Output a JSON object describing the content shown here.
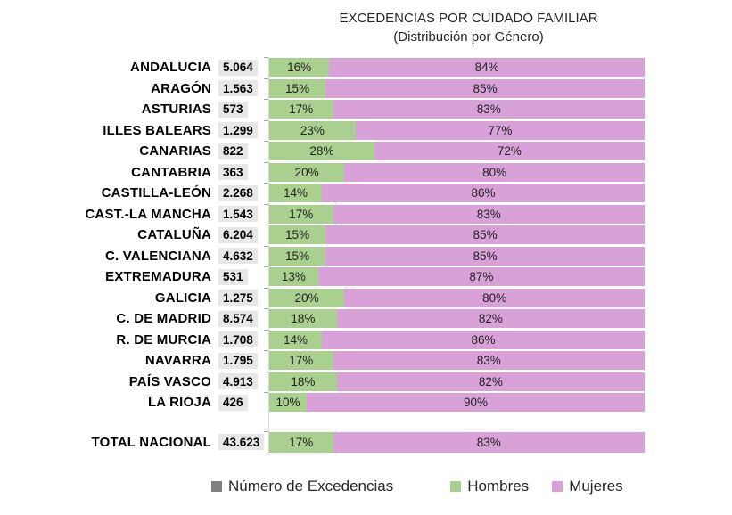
{
  "title": {
    "line1": "EXCEDENCIAS POR CUIDADO FAMILIAR",
    "line2": "(Distribución por Género)"
  },
  "colors": {
    "hombres": "#A9D08E",
    "mujeres": "#D8A2D8",
    "numero": "#808080",
    "value_background": "#E8E7E7",
    "axis": "#D9D9D9"
  },
  "chart_data": {
    "type": "bar",
    "subtype": "horizontal-stacked-100pct",
    "title": "EXCEDENCIAS POR CUIDADO FAMILIAR (Distribución por Género)",
    "series": [
      {
        "name": "Número de Excedencias",
        "color": "#808080"
      },
      {
        "name": "Hombres",
        "color": "#A9D08E"
      },
      {
        "name": "Mujeres",
        "color": "#D8A2D8"
      }
    ],
    "rows": [
      {
        "region": "ANDALUCIA",
        "excedencias": "5.064",
        "hombres": "16%",
        "mujeres": "84%"
      },
      {
        "region": "ARAGÓN",
        "excedencias": "1.563",
        "hombres": "15%",
        "mujeres": "85%"
      },
      {
        "region": "ASTURIAS",
        "excedencias": "573",
        "hombres": "17%",
        "mujeres": "83%"
      },
      {
        "region": "ILLES BALEARS",
        "excedencias": "1.299",
        "hombres": "23%",
        "mujeres": "77%"
      },
      {
        "region": "CANARIAS",
        "excedencias": "822",
        "hombres": "28%",
        "mujeres": "72%"
      },
      {
        "region": "CANTABRIA",
        "excedencias": "363",
        "hombres": "20%",
        "mujeres": "80%"
      },
      {
        "region": "CASTILLA-LEÓN",
        "excedencias": "2.268",
        "hombres": "14%",
        "mujeres": "86%"
      },
      {
        "region": "CAST.-LA MANCHA",
        "excedencias": "1.543",
        "hombres": "17%",
        "mujeres": "83%"
      },
      {
        "region": "CATALUÑA",
        "excedencias": "6.204",
        "hombres": "15%",
        "mujeres": "85%"
      },
      {
        "region": "C. VALENCIANA",
        "excedencias": "4.632",
        "hombres": "15%",
        "mujeres": "85%"
      },
      {
        "region": "EXTREMADURA",
        "excedencias": "531",
        "hombres": "13%",
        "mujeres": "87%"
      },
      {
        "region": "GALICIA",
        "excedencias": "1.275",
        "hombres": "20%",
        "mujeres": "80%"
      },
      {
        "region": "C. DE MADRID",
        "excedencias": "8.574",
        "hombres": "18%",
        "mujeres": "82%"
      },
      {
        "region": "R. DE MURCIA",
        "excedencias": "1.708",
        "hombres": "14%",
        "mujeres": "86%"
      },
      {
        "region": "NAVARRA",
        "excedencias": "1.795",
        "hombres": "17%",
        "mujeres": "83%"
      },
      {
        "region": "PAÍS VASCO",
        "excedencias": "4.913",
        "hombres": "18%",
        "mujeres": "82%"
      },
      {
        "region": "LA RIOJA",
        "excedencias": "426",
        "hombres": "10%",
        "mujeres": "90%"
      }
    ],
    "total": {
      "region": "TOTAL NACIONAL",
      "excedencias": "43.623",
      "hombres": "17%",
      "mujeres": "83%"
    }
  },
  "legend": {
    "items": [
      {
        "label": "Número de Excedencias",
        "color": "#808080"
      },
      {
        "label": "Hombres",
        "color": "#A9D08E"
      },
      {
        "label": "Mujeres",
        "color": "#D8A2D8"
      }
    ]
  }
}
